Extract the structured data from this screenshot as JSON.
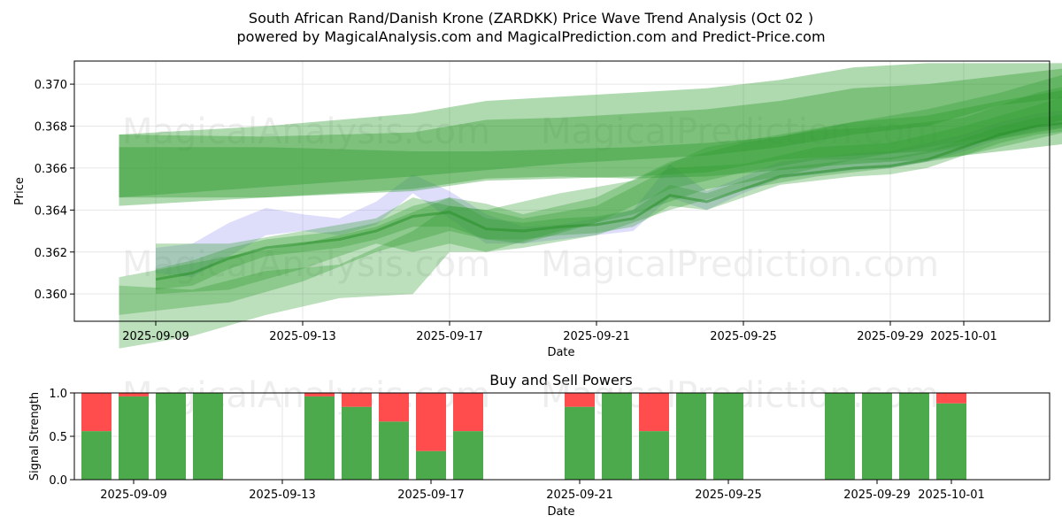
{
  "title_line1": "South African Rand/Danish Krone (ZARDKK) Price Wave Trend Analysis (Oct 02 )",
  "title_line2": "powered by MagicalAnalysis.com and MagicalPrediction.com and Predict-Price.com",
  "watermarks": [
    "MagicalAnalysis.com",
    "MagicalPrediction.com"
  ],
  "colors": {
    "green": "#2e9a2e",
    "blue": "#8a8af0",
    "buy": "#4caa4c",
    "sell": "#ff4d4d",
    "grid": "#e6e6e6"
  },
  "chart_data": [
    {
      "type": "area",
      "title": "",
      "xlabel": "Date",
      "ylabel": "Price",
      "ylim": [
        0.3587,
        0.3711
      ],
      "x_range": [
        "2025-09-06.7",
        "2025-10-03.8"
      ],
      "x_ticks": [
        "2025-09-09",
        "2025-09-13",
        "2025-09-17",
        "2025-09-21",
        "2025-09-25",
        "2025-09-29",
        "2025-10-01"
      ],
      "y_ticks": [
        "0.360",
        "0.362",
        "0.364",
        "0.366",
        "0.368",
        "0.370"
      ],
      "series": [
        {
          "name": "blue-wave-band",
          "color": "#8a8af0",
          "x": [
            1.0,
            2.0,
            3.0,
            4.0,
            5.0,
            6.0,
            7.0,
            8.0,
            9.0,
            10.0,
            11.0,
            12.0,
            13.0,
            14.0,
            15.0,
            16.0,
            17.0,
            18.0,
            19.0,
            20.0,
            21.0,
            22.0,
            23.0,
            24.0,
            25.0,
            26.0
          ],
          "upper": [
            0.3622,
            0.3624,
            0.3634,
            0.3641,
            0.3638,
            0.3636,
            0.3644,
            0.3657,
            0.3649,
            0.3638,
            0.3632,
            0.3633,
            0.3636,
            0.364,
            0.3662,
            0.3649,
            0.3656,
            0.3663,
            0.3665,
            0.3667,
            0.3668,
            0.3672,
            0.3676,
            0.3682,
            0.3686,
            0.3688
          ],
          "lower": [
            0.361,
            0.3608,
            0.3618,
            0.3628,
            0.363,
            0.3628,
            0.3633,
            0.3648,
            0.3636,
            0.3624,
            0.3624,
            0.3626,
            0.3628,
            0.363,
            0.3646,
            0.364,
            0.3648,
            0.3655,
            0.3657,
            0.3659,
            0.366,
            0.3663,
            0.3668,
            0.3674,
            0.3678,
            0.368
          ]
        },
        {
          "name": "green-wave-band-1",
          "color": "#2e9a2e",
          "x": [
            1.0,
            2.0,
            3.0,
            4.0,
            5.0,
            6.0,
            7.0,
            8.0,
            9.0,
            10.0,
            11.0,
            12.0,
            13.0,
            14.0,
            15.0,
            16.0,
            17.0,
            18.0,
            19.0,
            20.0,
            21.0,
            22.0,
            23.0,
            24.0,
            25.0,
            26.0
          ],
          "upper": [
            0.3612,
            0.3616,
            0.3622,
            0.3626,
            0.3628,
            0.363,
            0.3634,
            0.3642,
            0.3646,
            0.3636,
            0.3634,
            0.3636,
            0.3637,
            0.364,
            0.3652,
            0.3648,
            0.3654,
            0.366,
            0.3662,
            0.3664,
            0.3665,
            0.3668,
            0.3674,
            0.368,
            0.3684,
            0.3686
          ],
          "lower": [
            0.3602,
            0.3604,
            0.3612,
            0.3618,
            0.362,
            0.3622,
            0.3626,
            0.3632,
            0.3632,
            0.3626,
            0.3626,
            0.3628,
            0.3629,
            0.3632,
            0.3642,
            0.364,
            0.3646,
            0.3652,
            0.3654,
            0.3656,
            0.3657,
            0.366,
            0.3666,
            0.3672,
            0.3676,
            0.3678
          ]
        },
        {
          "name": "green-wave-band-2",
          "color": "#2e9a2e",
          "x": [
            1.0,
            3.0,
            5.0,
            7.0,
            8.0,
            9.0,
            10.0,
            11.0,
            13.0,
            15.0,
            17.0,
            19.0,
            21.0,
            23.0,
            25.0,
            26.0
          ],
          "upper": [
            0.3624,
            0.3624,
            0.363,
            0.3636,
            0.3646,
            0.3642,
            0.364,
            0.3636,
            0.3642,
            0.366,
            0.3662,
            0.367,
            0.3672,
            0.368,
            0.369,
            0.3696
          ],
          "lower": [
            0.36,
            0.3602,
            0.3612,
            0.3624,
            0.362,
            0.3624,
            0.362,
            0.3622,
            0.3628,
            0.364,
            0.365,
            0.3656,
            0.366,
            0.3666,
            0.3674,
            0.3678
          ]
        },
        {
          "name": "green-wave-band-3",
          "color": "#2e9a2e",
          "x": [
            0.0,
            3.0,
            5.0,
            7.0,
            9.0,
            10.0,
            11.0,
            13.0,
            15.0,
            17.0,
            19.0,
            21.0,
            23.0,
            25.0,
            26.0
          ],
          "upper": [
            0.3608,
            0.3618,
            0.3624,
            0.3632,
            0.3646,
            0.3643,
            0.3638,
            0.3646,
            0.3663,
            0.3672,
            0.3678,
            0.368,
            0.3684,
            0.3696,
            0.37
          ],
          "lower": [
            0.359,
            0.3596,
            0.3606,
            0.362,
            0.363,
            0.3626,
            0.3624,
            0.3634,
            0.365,
            0.3658,
            0.3664,
            0.3664,
            0.367,
            0.368,
            0.3684
          ]
        },
        {
          "name": "green-wave-band-4",
          "color": "#2e9a2e",
          "x": [
            0.0,
            2.0,
            4.0,
            6.0,
            8.0,
            9.0,
            10.0,
            12.0,
            14.0,
            16.0,
            18.0,
            20.0,
            22.0,
            24.0,
            26.0
          ],
          "upper": [
            0.3604,
            0.3602,
            0.3611,
            0.3614,
            0.363,
            0.3642,
            0.364,
            0.3648,
            0.3654,
            0.367,
            0.3676,
            0.3682,
            0.3688,
            0.3696,
            0.3706
          ],
          "lower": [
            0.3574,
            0.358,
            0.359,
            0.3598,
            0.36,
            0.362,
            0.362,
            0.363,
            0.3638,
            0.365,
            0.3656,
            0.3664,
            0.367,
            0.3676,
            0.3684
          ]
        },
        {
          "name": "green-trend-band-top",
          "color": "#2e9a2e",
          "x": [
            0.0,
            4.0,
            8.0,
            10.0,
            12.0,
            14.0,
            16.0,
            18.0,
            20.0,
            22.0,
            24.0,
            26.0
          ],
          "upper": [
            0.3676,
            0.368,
            0.3686,
            0.3692,
            0.3694,
            0.3696,
            0.3698,
            0.3702,
            0.3708,
            0.371,
            0.371,
            0.371
          ],
          "lower": [
            0.3646,
            0.3651,
            0.3656,
            0.3659,
            0.3662,
            0.3664,
            0.3666,
            0.367,
            0.3676,
            0.368,
            0.369,
            0.3694
          ]
        },
        {
          "name": "green-trend-band-mid",
          "color": "#2e9a2e",
          "x": [
            0.0,
            4.0,
            8.0,
            10.0,
            12.0,
            14.0,
            16.0,
            18.0,
            20.0,
            22.0,
            24.0,
            26.0
          ],
          "upper": [
            0.3676,
            0.3675,
            0.3677,
            0.3683,
            0.3684,
            0.3686,
            0.3688,
            0.3692,
            0.3698,
            0.37,
            0.3704,
            0.3708
          ],
          "lower": [
            0.3646,
            0.3646,
            0.3649,
            0.3654,
            0.3655,
            0.3656,
            0.3658,
            0.3664,
            0.3666,
            0.3668,
            0.3674,
            0.368
          ]
        },
        {
          "name": "green-trend-band-low",
          "color": "#2e9a2e",
          "x": [
            0.0,
            4.0,
            8.0,
            10.0,
            12.0,
            14.0,
            16.0,
            18.0,
            20.0,
            22.0,
            24.0,
            26.0
          ],
          "upper": [
            0.367,
            0.367,
            0.3668,
            0.3668,
            0.3669,
            0.367,
            0.3672,
            0.3675,
            0.3682,
            0.3685,
            0.3692,
            0.3698
          ],
          "lower": [
            0.3642,
            0.3646,
            0.365,
            0.3655,
            0.3656,
            0.3655,
            0.3656,
            0.3659,
            0.3662,
            0.3664,
            0.3668,
            0.3672
          ]
        }
      ]
    },
    {
      "type": "bar",
      "title": "Buy and Sell Powers",
      "xlabel": "Date",
      "ylabel": "Signal Strength",
      "ylim": [
        0,
        1.0
      ],
      "y_ticks": [
        "0.0",
        "0.5",
        "1.0"
      ],
      "x_ticks": [
        "2025-09-09",
        "2025-09-13",
        "2025-09-17",
        "2025-09-21",
        "2025-09-25",
        "2025-09-29",
        "2025-10-01"
      ],
      "categories": [
        "2025-09-08",
        "2025-09-09",
        "2025-09-10",
        "2025-09-11",
        "2025-09-14",
        "2025-09-15",
        "2025-09-16",
        "2025-09-17",
        "2025-09-18",
        "2025-09-21",
        "2025-09-22",
        "2025-09-23",
        "2025-09-24",
        "2025-09-25",
        "2025-09-28",
        "2025-09-29",
        "2025-09-30",
        "2025-10-01"
      ],
      "series": [
        {
          "name": "Buy",
          "color": "#4caa4c",
          "values": [
            0.56,
            0.96,
            1.0,
            1.0,
            0.96,
            0.84,
            0.67,
            0.33,
            0.56,
            0.84,
            1.0,
            0.56,
            1.0,
            1.0,
            1.0,
            1.0,
            1.0,
            0.88
          ]
        },
        {
          "name": "Sell",
          "color": "#ff4d4d",
          "values": [
            0.44,
            0.04,
            0.0,
            0.0,
            0.04,
            0.16,
            0.33,
            0.67,
            0.44,
            0.16,
            0.0,
            0.44,
            0.0,
            0.0,
            0.0,
            0.0,
            0.0,
            0.12
          ]
        }
      ]
    }
  ]
}
